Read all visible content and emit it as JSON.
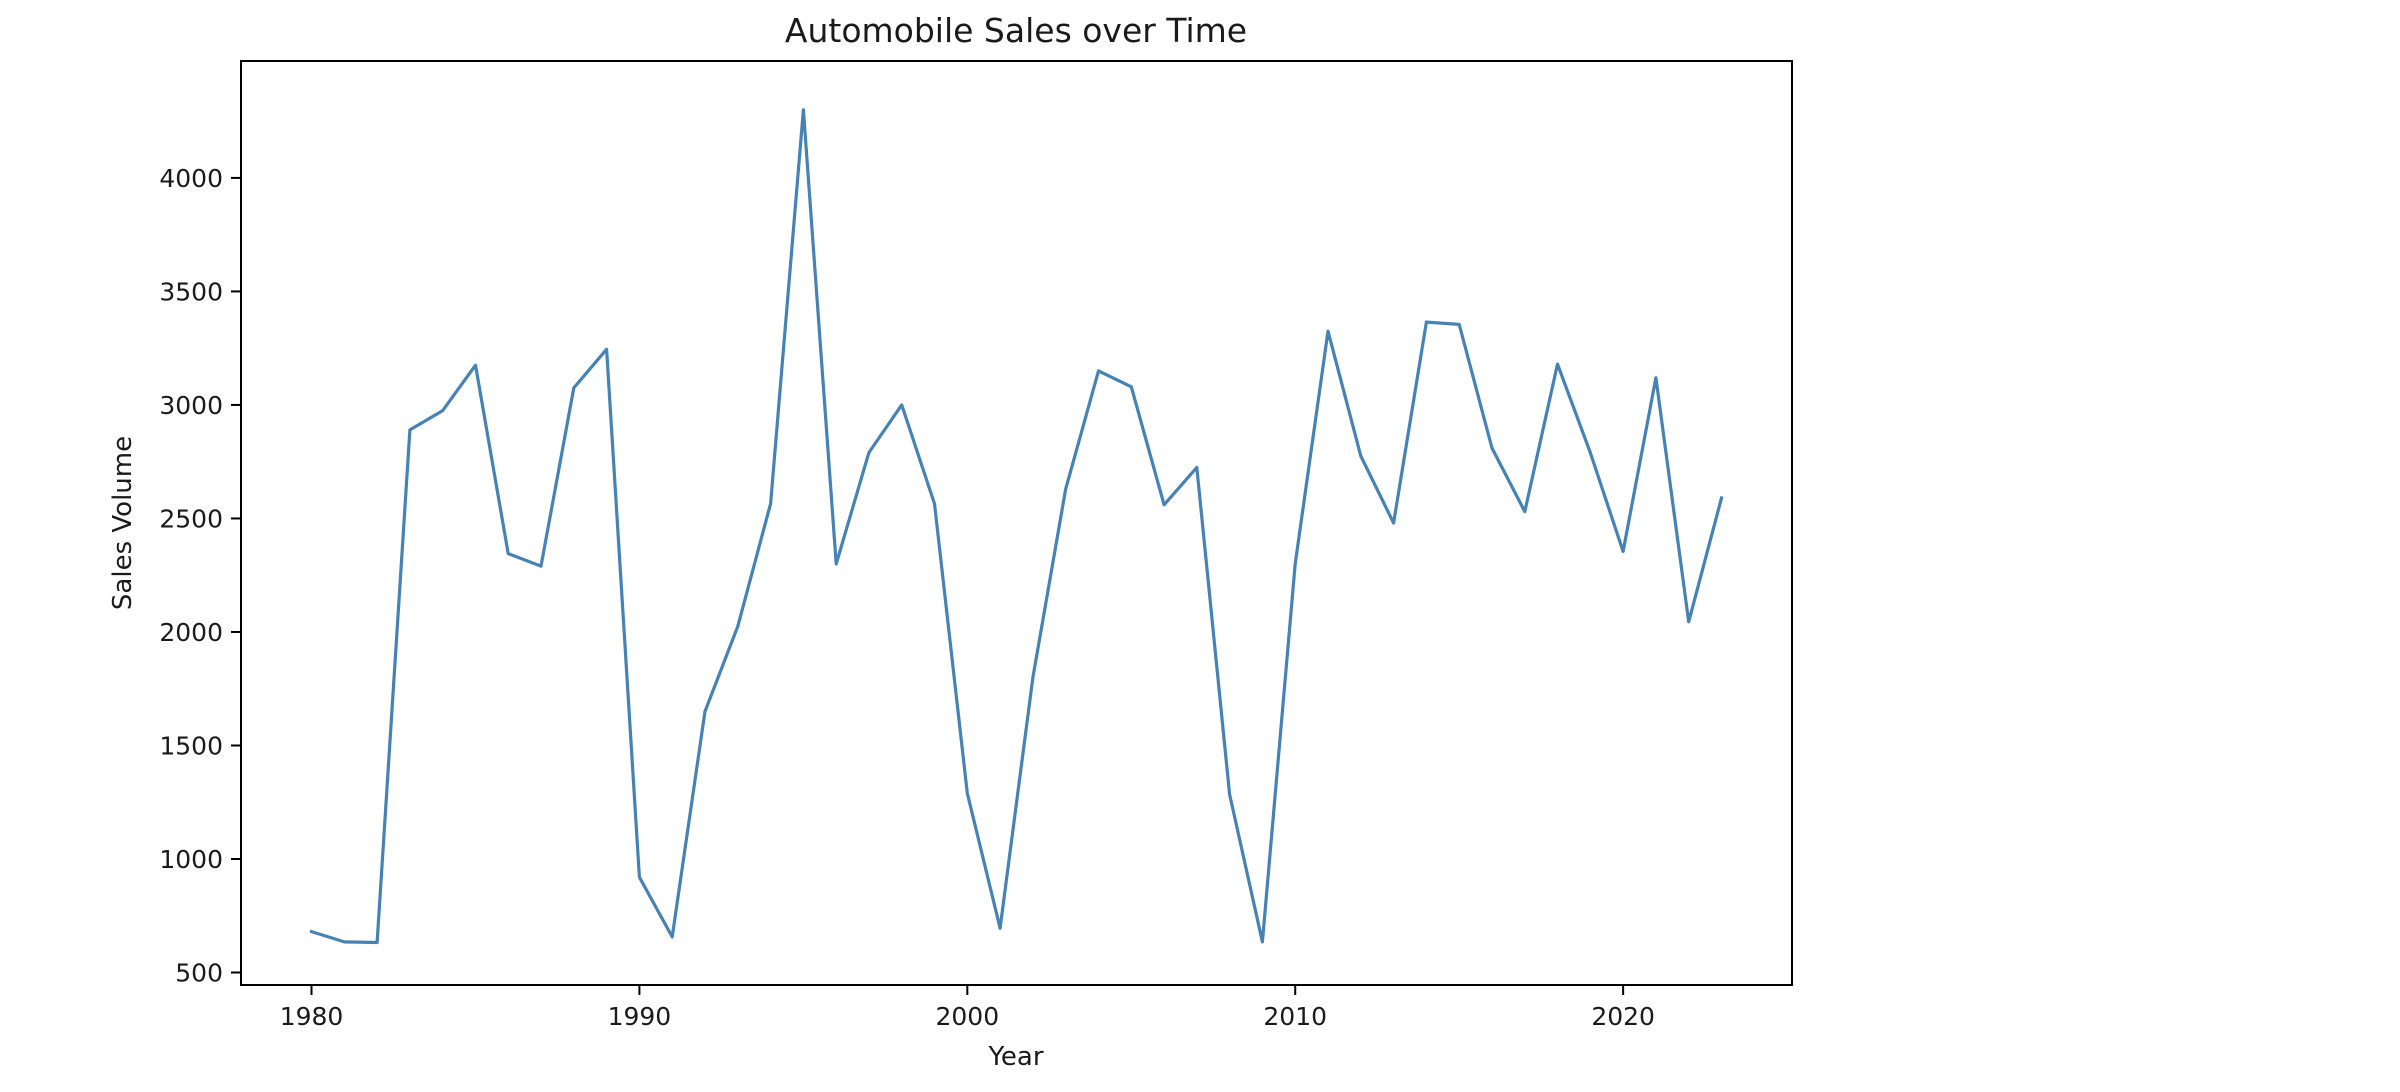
{
  "chart_data": {
    "type": "line",
    "title": "Automobile Sales over Time",
    "xlabel": "Year",
    "ylabel": "Sales Volume",
    "xlim": [
      1977.85,
      2025.15
    ],
    "ylim": [
      445,
      4515
    ],
    "x_ticks": [
      1980,
      1990,
      2000,
      2010,
      2020
    ],
    "y_ticks": [
      500,
      1000,
      1500,
      2000,
      2500,
      3000,
      3500,
      4000
    ],
    "grid": false,
    "legend": "none",
    "series": [
      {
        "color": "#4682b4",
        "x": [
          1980,
          1981,
          1982,
          1983,
          1984,
          1985,
          1986,
          1987,
          1988,
          1989,
          1990,
          1991,
          1992,
          1993,
          1994,
          1995,
          1996,
          1997,
          1998,
          1999,
          2000,
          2001,
          2002,
          2003,
          2004,
          2005,
          2006,
          2007,
          2008,
          2009,
          2010,
          2011,
          2012,
          2013,
          2014,
          2015,
          2016,
          2017,
          2018,
          2019,
          2020,
          2021,
          2022,
          2023
        ],
        "y": [
          680,
          635,
          632,
          2890,
          2975,
          3175,
          2345,
          2290,
          3075,
          3245,
          920,
          657,
          1650,
          2025,
          2565,
          4300,
          2300,
          2790,
          3000,
          2565,
          1290,
          695,
          1800,
          2630,
          3150,
          3080,
          2560,
          2725,
          1285,
          635,
          2300,
          3325,
          2775,
          2480,
          3365,
          3355,
          2810,
          2530,
          3180,
          2790,
          2355,
          3120,
          2045,
          2590
        ]
      }
    ]
  }
}
